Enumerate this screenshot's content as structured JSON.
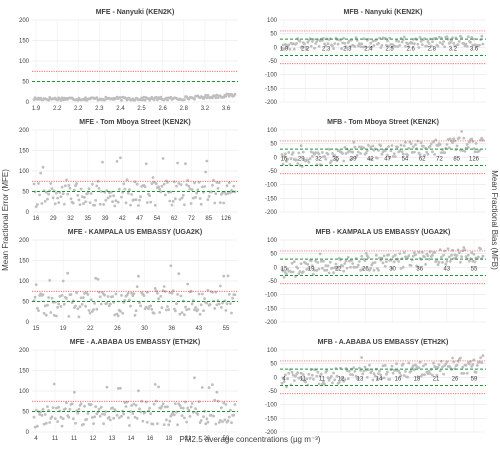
{
  "chart_data": [
    {
      "type": "scatter",
      "title": "MFE - Nanyuki (KEN2K)",
      "ylim": [
        0,
        200
      ],
      "y_ticks": [
        "200",
        "150",
        "100",
        "50",
        "0"
      ],
      "x_tick_labels": [
        "1.9",
        "2.2",
        "2.2",
        "2.3",
        "2.4",
        "2.5",
        "2.6",
        "2.8",
        "3.2",
        "3.6"
      ],
      "threshold_lines": {
        "red_dotted": [
          75
        ],
        "green_dashed": [
          50
        ]
      },
      "marker_color": "#bfbfbf",
      "grid": true
    },
    {
      "type": "scatter",
      "title": "MFB - Nanyuki (KEN2K)",
      "ylim": [
        -200,
        100
      ],
      "y_ticks": [
        "100",
        "50",
        "0",
        "-50",
        "-100",
        "-150",
        "-200"
      ],
      "x_tick_labels": [
        "1.9",
        "2.2",
        "2.3",
        "2.3",
        "2.4",
        "2.5",
        "2.6",
        "2.8",
        "3.2",
        "3.6"
      ],
      "threshold_lines": {
        "red_dotted": [
          60,
          -60
        ],
        "green_dashed": [
          30,
          -30
        ]
      },
      "marker_color": "#bfbfbf",
      "grid": true
    },
    {
      "type": "scatter",
      "title": "MFE - Tom Mboya Street (KEN2K)",
      "ylim": [
        0,
        200
      ],
      "y_ticks": [
        "200",
        "150",
        "100",
        "50",
        "0"
      ],
      "x_tick_labels": [
        "16",
        "29",
        "32",
        "35",
        "39",
        "42",
        "47",
        "54",
        "62",
        "72",
        "85",
        "126"
      ],
      "threshold_lines": {
        "red_dotted": [
          75
        ],
        "green_dashed": [
          50
        ]
      },
      "marker_color": "#bfbfbf",
      "grid": true
    },
    {
      "type": "scatter",
      "title": "MFB - Tom Mboya Street (KEN2K)",
      "ylim": [
        -200,
        100
      ],
      "y_ticks": [
        "100",
        "50",
        "0",
        "-50",
        "-100",
        "-150",
        "-200"
      ],
      "x_tick_labels": [
        "16",
        "29",
        "32",
        "35",
        "39",
        "42",
        "47",
        "54",
        "62",
        "72",
        "85",
        "126"
      ],
      "threshold_lines": {
        "red_dotted": [
          60,
          -60
        ],
        "green_dashed": [
          30,
          -30
        ]
      },
      "marker_color": "#bfbfbf",
      "grid": true
    },
    {
      "type": "scatter",
      "title": "MFE - KAMPALA US EMBASSY (UGA2K)",
      "ylim": [
        0,
        200
      ],
      "y_ticks": [
        "200",
        "150",
        "100",
        "50",
        "0"
      ],
      "x_tick_labels": [
        "15",
        "19",
        "22",
        "26",
        "30",
        "36",
        "43",
        "55"
      ],
      "threshold_lines": {
        "red_dotted": [
          75
        ],
        "green_dashed": [
          50
        ]
      },
      "marker_color": "#bfbfbf",
      "grid": true
    },
    {
      "type": "scatter",
      "title": "MFB - KAMPALA US EMBASSY (UGA2K)",
      "ylim": [
        -200,
        100
      ],
      "y_ticks": [
        "100",
        "50",
        "0",
        "-50",
        "-100",
        "-150",
        "-200"
      ],
      "x_tick_labels": [
        "15",
        "19",
        "22",
        "26",
        "30",
        "36",
        "43",
        "55"
      ],
      "threshold_lines": {
        "red_dotted": [
          60,
          -60
        ],
        "green_dashed": [
          30,
          -30
        ]
      },
      "marker_color": "#bfbfbf",
      "grid": true
    },
    {
      "type": "scatter",
      "title": "MFE - A.ABABA US EMBASSY (ETH2K)",
      "ylim": [
        0,
        200
      ],
      "y_ticks": [
        "200",
        "150",
        "100",
        "50",
        "0"
      ],
      "x_tick_labels": [
        "4",
        "11",
        "11",
        "12",
        "13",
        "14",
        "16",
        "18",
        "21",
        "26",
        "59"
      ],
      "threshold_lines": {
        "red_dotted": [
          75
        ],
        "green_dashed": [
          50
        ]
      },
      "marker_color": "#bfbfbf",
      "grid": true
    },
    {
      "type": "scatter",
      "title": "MFB - A.ABABA US EMBASSY (ETH2K)",
      "ylim": [
        -200,
        100
      ],
      "y_ticks": [
        "100",
        "50",
        "0",
        "-50",
        "-100",
        "-150",
        "-200"
      ],
      "x_tick_labels": [
        "4",
        "11",
        "11",
        "12",
        "13",
        "14",
        "16",
        "18",
        "21",
        "26",
        "59"
      ],
      "threshold_lines": {
        "red_dotted": [
          60,
          -60
        ],
        "green_dashed": [
          30,
          -30
        ]
      },
      "marker_color": "#bfbfbf",
      "grid": true
    }
  ],
  "axis_labels": {
    "x_common": "PM2.5 average concentrations (µg m⁻³)",
    "y_left": "Mean Fractional Error (MFE)",
    "y_right": "Mean Fractional Bias (MFB)"
  }
}
